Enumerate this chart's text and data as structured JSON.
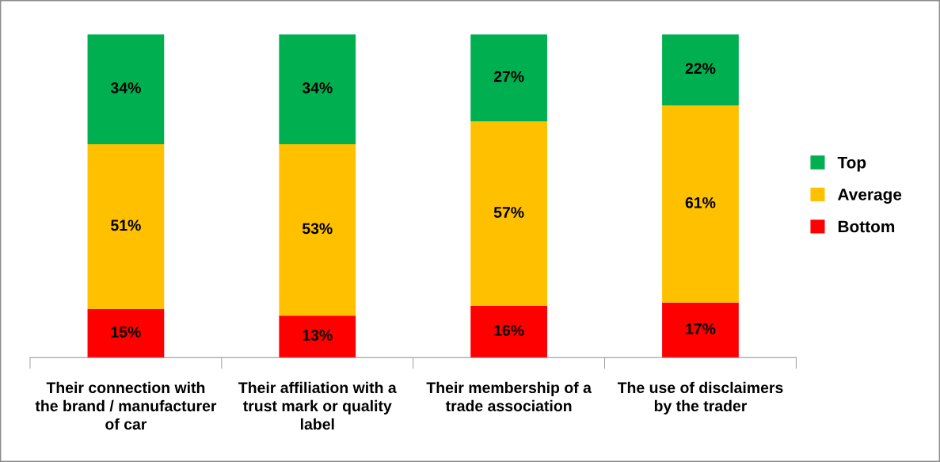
{
  "chart_data": {
    "type": "bar",
    "stacked": true,
    "categories": [
      "Their connection with the brand / manufacturer of car",
      "Their affiliation with a trust mark or quality label",
      "Their membership of a trade association",
      "The use of disclaimers by the trader"
    ],
    "series": [
      {
        "name": "Bottom",
        "color": "#ff0000",
        "values": [
          15,
          13,
          16,
          17
        ],
        "value_labels": [
          "15%",
          "13%",
          "16%",
          "17%"
        ]
      },
      {
        "name": "Average",
        "color": "#ffc000",
        "values": [
          51,
          53,
          57,
          61
        ],
        "value_labels": [
          "51%",
          "53%",
          "57%",
          "61%"
        ]
      },
      {
        "name": "Top",
        "color": "#00b050",
        "values": [
          34,
          34,
          27,
          22
        ],
        "value_labels": [
          "34%",
          "34%",
          "27%",
          "22%"
        ]
      }
    ],
    "tick_labels": "x",
    "legend": "right"
  }
}
